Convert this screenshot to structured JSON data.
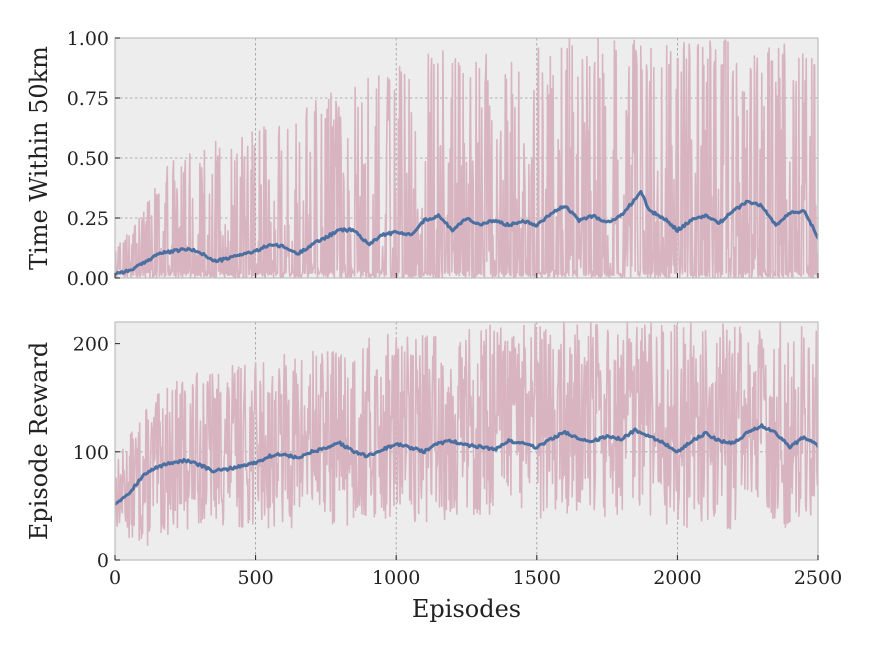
{
  "colors": {
    "raw": "#d8b4c0",
    "smoothed": "#4a6fa0"
  },
  "chart_data": [
    {
      "type": "line",
      "id": "top",
      "ylabel": "Time Within 50km",
      "xlabel": "",
      "xlim": [
        0,
        2500
      ],
      "ylim": [
        0,
        1.0
      ],
      "xticks": [
        0,
        500,
        1000,
        1500,
        2000,
        2500
      ],
      "yticks": [
        0.0,
        0.25,
        0.5,
        0.75,
        1.0
      ],
      "ytick_labels": [
        "0.00",
        "0.25",
        "0.50",
        "0.75",
        "1.00"
      ],
      "grid": true,
      "series": [
        {
          "role": "raw",
          "noise": {
            "low_min": 0.0,
            "low_max": 0.03,
            "high_min": 0.85,
            "high_max": 1.0,
            "seed": 7
          },
          "x": [
            0,
            100,
            200,
            300,
            400,
            500,
            600,
            700,
            800,
            900,
            1000,
            1100,
            1200,
            1300,
            1400,
            1500,
            1600,
            1700,
            1800,
            1900,
            2000,
            2100,
            2200,
            2300,
            2400,
            2500
          ],
          "upper": [
            0.12,
            0.28,
            0.5,
            0.6,
            0.55,
            0.62,
            0.7,
            0.75,
            0.8,
            0.85,
            0.9,
            0.95,
            0.95,
            0.95,
            0.95,
            1.0,
            1.0,
            1.0,
            1.0,
            1.0,
            1.0,
            1.0,
            1.0,
            1.0,
            1.0,
            1.0
          ],
          "lower": [
            0.0,
            0.0,
            0.0,
            0.0,
            0.0,
            0.0,
            0.0,
            0.0,
            0.0,
            0.0,
            0.0,
            0.0,
            0.0,
            0.0,
            0.0,
            0.0,
            0.0,
            0.0,
            0.0,
            0.0,
            0.0,
            0.0,
            0.0,
            0.0,
            0.0,
            0.0
          ]
        },
        {
          "role": "smoothed",
          "x": [
            0,
            50,
            100,
            150,
            200,
            250,
            300,
            350,
            400,
            450,
            500,
            550,
            600,
            650,
            700,
            750,
            800,
            850,
            900,
            950,
            1000,
            1050,
            1100,
            1150,
            1200,
            1250,
            1300,
            1350,
            1400,
            1450,
            1500,
            1550,
            1600,
            1650,
            1700,
            1750,
            1800,
            1850,
            1870,
            1900,
            1950,
            2000,
            2050,
            2100,
            2150,
            2200,
            2250,
            2300,
            2350,
            2400,
            2450,
            2500
          ],
          "y": [
            0.02,
            0.03,
            0.06,
            0.1,
            0.11,
            0.12,
            0.11,
            0.07,
            0.08,
            0.1,
            0.11,
            0.14,
            0.13,
            0.1,
            0.14,
            0.17,
            0.2,
            0.2,
            0.14,
            0.18,
            0.19,
            0.18,
            0.24,
            0.26,
            0.2,
            0.25,
            0.22,
            0.24,
            0.22,
            0.24,
            0.22,
            0.27,
            0.3,
            0.24,
            0.26,
            0.23,
            0.26,
            0.33,
            0.36,
            0.28,
            0.25,
            0.2,
            0.24,
            0.26,
            0.23,
            0.28,
            0.32,
            0.3,
            0.22,
            0.27,
            0.28,
            0.17
          ]
        }
      ]
    },
    {
      "type": "line",
      "id": "bottom",
      "ylabel": "Episode Reward",
      "xlabel": "Episodes",
      "xlim": [
        0,
        2500
      ],
      "ylim": [
        0,
        220
      ],
      "xticks": [
        0,
        500,
        1000,
        1500,
        2000,
        2500
      ],
      "xtick_labels": [
        "0",
        "500",
        "1000",
        "1500",
        "2000",
        "2500"
      ],
      "yticks": [
        0,
        100,
        200
      ],
      "ytick_labels": [
        "0",
        "100",
        "200"
      ],
      "grid": true,
      "series": [
        {
          "role": "raw",
          "noise": {
            "seed": 13
          },
          "x": [
            0,
            100,
            200,
            300,
            400,
            500,
            600,
            700,
            800,
            900,
            1000,
            1100,
            1200,
            1300,
            1400,
            1500,
            1600,
            1700,
            1800,
            1900,
            2000,
            2100,
            2200,
            2300,
            2400,
            2500
          ],
          "upper": [
            90,
            140,
            165,
            175,
            180,
            185,
            190,
            195,
            200,
            205,
            210,
            215,
            215,
            218,
            218,
            220,
            220,
            220,
            220,
            220,
            220,
            220,
            220,
            220,
            220,
            220
          ],
          "lower": [
            30,
            10,
            25,
            30,
            28,
            30,
            28,
            32,
            30,
            32,
            35,
            35,
            38,
            38,
            40,
            38,
            40,
            38,
            35,
            35,
            30,
            30,
            28,
            30,
            30,
            30
          ]
        },
        {
          "role": "smoothed",
          "x": [
            0,
            50,
            100,
            150,
            200,
            250,
            300,
            350,
            400,
            450,
            500,
            550,
            600,
            650,
            700,
            750,
            800,
            850,
            900,
            950,
            1000,
            1050,
            1100,
            1150,
            1200,
            1250,
            1300,
            1350,
            1400,
            1450,
            1500,
            1550,
            1600,
            1650,
            1700,
            1750,
            1800,
            1850,
            1900,
            1950,
            2000,
            2050,
            2100,
            2150,
            2200,
            2250,
            2300,
            2350,
            2400,
            2450,
            2500
          ],
          "y": [
            52,
            62,
            78,
            86,
            90,
            92,
            88,
            82,
            84,
            87,
            90,
            96,
            98,
            94,
            100,
            103,
            108,
            100,
            96,
            102,
            107,
            104,
            100,
            108,
            110,
            106,
            105,
            102,
            110,
            108,
            104,
            112,
            118,
            112,
            110,
            114,
            112,
            120,
            115,
            108,
            100,
            110,
            117,
            110,
            108,
            118,
            124,
            118,
            104,
            114,
            106
          ]
        }
      ]
    }
  ]
}
